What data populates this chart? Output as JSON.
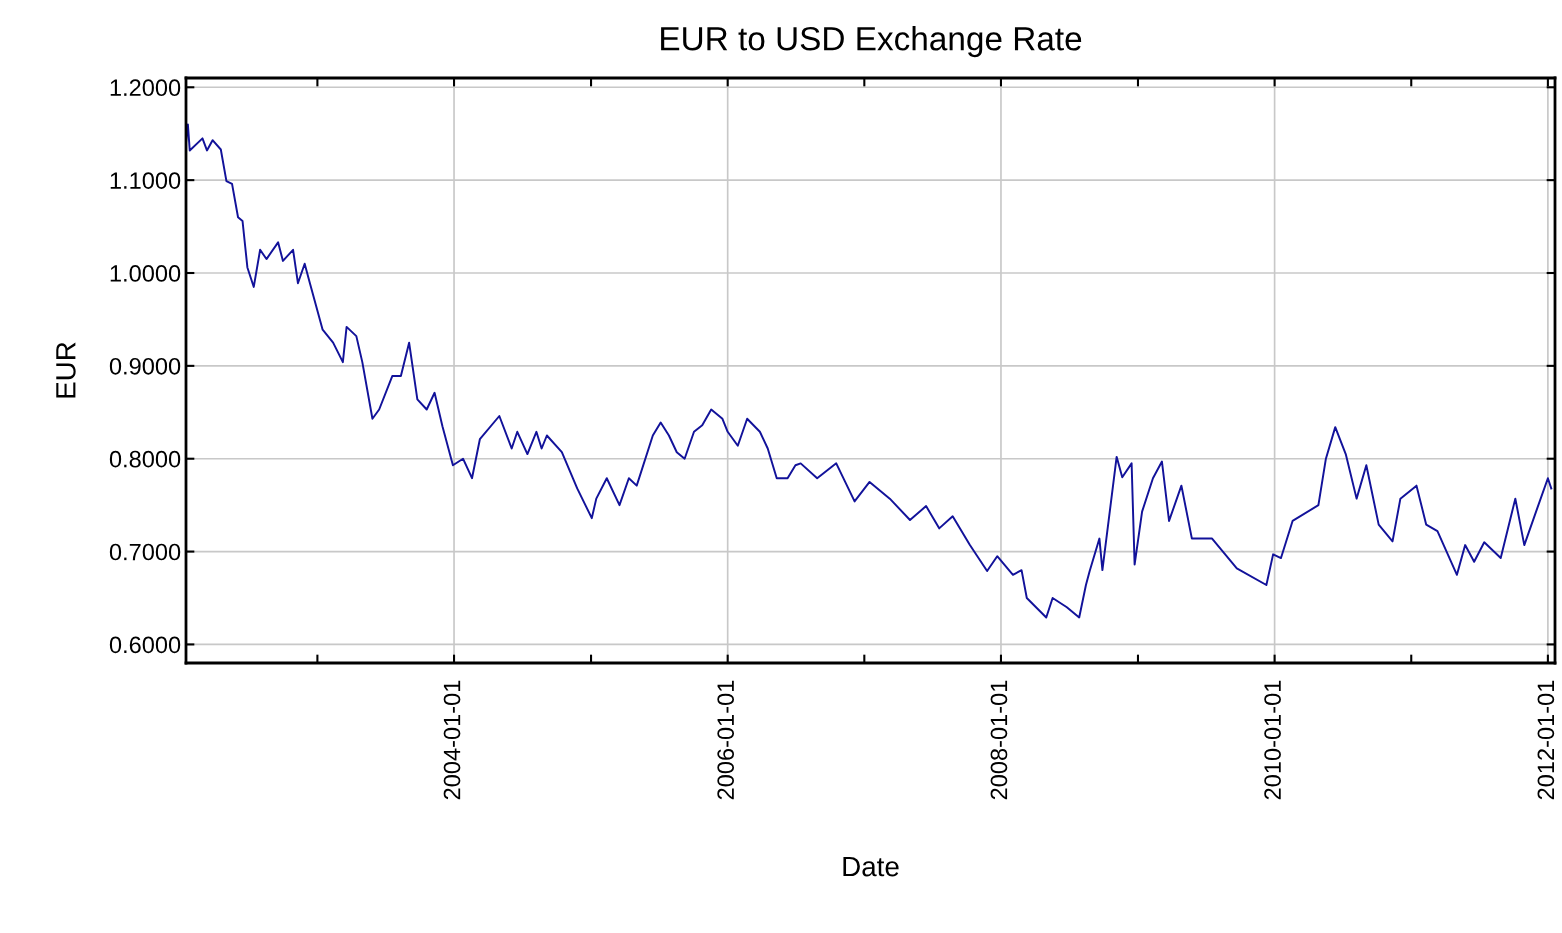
{
  "chart_data": {
    "type": "line",
    "title": "EUR to USD Exchange Rate",
    "xlabel": "Date",
    "ylabel": "EUR",
    "x": [
      "2002-01-15",
      "2002-01-20",
      "2002-01-25",
      "2002-02-28",
      "2002-03-12",
      "2002-03-27",
      "2002-04-18",
      "2002-05-03",
      "2002-05-18",
      "2002-06-03",
      "2002-06-15",
      "2002-06-28",
      "2002-07-15",
      "2002-08-01",
      "2002-08-18",
      "2002-09-18",
      "2002-10-01",
      "2002-10-28",
      "2002-11-10",
      "2002-11-28",
      "2002-12-12",
      "2003-01-15",
      "2003-02-12",
      "2003-03-10",
      "2003-03-20",
      "2003-04-15",
      "2003-05-01",
      "2003-05-28",
      "2003-06-15",
      "2003-07-20",
      "2003-08-12",
      "2003-09-03",
      "2003-09-25",
      "2003-10-20",
      "2003-11-10",
      "2003-12-01",
      "2003-12-29",
      "2004-01-25",
      "2004-02-18",
      "2004-03-10",
      "2004-05-01",
      "2004-06-03",
      "2004-06-18",
      "2004-07-15",
      "2004-08-08",
      "2004-08-22",
      "2004-09-05",
      "2004-10-15",
      "2004-11-25",
      "2005-01-03",
      "2005-01-15",
      "2005-02-12",
      "2005-03-18",
      "2005-04-12",
      "2005-05-03",
      "2005-06-15",
      "2005-07-06",
      "2005-07-28",
      "2005-08-18",
      "2005-09-08",
      "2005-10-03",
      "2005-10-25",
      "2005-11-18",
      "2005-12-18",
      "2006-01-01",
      "2006-01-28",
      "2006-02-22",
      "2006-03-28",
      "2006-04-18",
      "2006-05-12",
      "2006-06-10",
      "2006-07-01",
      "2006-07-15",
      "2006-08-28",
      "2006-10-18",
      "2006-12-06",
      "2007-01-15",
      "2007-03-10",
      "2007-05-03",
      "2007-06-15",
      "2007-07-20",
      "2007-08-25",
      "2007-10-10",
      "2007-11-25",
      "2007-12-22",
      "2008-02-02",
      "2008-02-25",
      "2008-03-10",
      "2008-05-01",
      "2008-05-18",
      "2008-06-25",
      "2008-07-28",
      "2008-08-15",
      "2008-08-25",
      "2008-09-20",
      "2008-09-28",
      "2008-11-05",
      "2008-11-20",
      "2008-12-15",
      "2008-12-23",
      "2009-01-12",
      "2009-02-10",
      "2009-03-06",
      "2009-03-25",
      "2009-04-27",
      "2009-05-25",
      "2009-07-18",
      "2009-09-22",
      "2009-12-10",
      "2009-12-28",
      "2010-01-18",
      "2010-02-18",
      "2010-04-28",
      "2010-05-18",
      "2010-06-12",
      "2010-07-10",
      "2010-08-08",
      "2010-09-03",
      "2010-10-06",
      "2010-11-12",
      "2010-12-03",
      "2011-01-15",
      "2011-02-10",
      "2011-03-12",
      "2011-05-03",
      "2011-05-25",
      "2011-06-18",
      "2011-07-15",
      "2011-08-28",
      "2011-10-06",
      "2011-10-30",
      "2011-12-03",
      "2012-01-01",
      "2012-01-10"
    ],
    "series": [
      {
        "color": "#12129a",
        "values": [
          1.14,
          1.16,
          1.132,
          1.145,
          1.132,
          1.143,
          1.133,
          1.099,
          1.096,
          1.06,
          1.056,
          1.006,
          0.985,
          1.025,
          1.015,
          1.033,
          1.013,
          1.025,
          0.989,
          1.01,
          0.989,
          0.939,
          0.925,
          0.904,
          0.942,
          0.932,
          0.904,
          0.843,
          0.853,
          0.889,
          0.889,
          0.925,
          0.864,
          0.853,
          0.871,
          0.835,
          0.793,
          0.8,
          0.779,
          0.821,
          0.846,
          0.811,
          0.829,
          0.805,
          0.829,
          0.811,
          0.825,
          0.807,
          0.768,
          0.736,
          0.757,
          0.779,
          0.75,
          0.779,
          0.771,
          0.825,
          0.839,
          0.825,
          0.807,
          0.8,
          0.829,
          0.836,
          0.853,
          0.843,
          0.829,
          0.814,
          0.843,
          0.829,
          0.811,
          0.779,
          0.779,
          0.793,
          0.795,
          0.779,
          0.795,
          0.754,
          0.775,
          0.757,
          0.734,
          0.749,
          0.725,
          0.738,
          0.707,
          0.679,
          0.695,
          0.675,
          0.68,
          0.65,
          0.629,
          0.65,
          0.64,
          0.629,
          0.664,
          0.679,
          0.714,
          0.68,
          0.802,
          0.78,
          0.795,
          0.686,
          0.743,
          0.779,
          0.797,
          0.733,
          0.771,
          0.714,
          0.714,
          0.682,
          0.664,
          0.697,
          0.693,
          0.733,
          0.75,
          0.8,
          0.834,
          0.805,
          0.757,
          0.793,
          0.729,
          0.711,
          0.757,
          0.771,
          0.729,
          0.722,
          0.675,
          0.707,
          0.689,
          0.71,
          0.693,
          0.757,
          0.707,
          0.746,
          0.779,
          0.768
        ]
      }
    ],
    "xlim": [
      "2002-01-15",
      "2012-01-20"
    ],
    "xticks": [
      {
        "value": "2003-01-01",
        "label": null
      },
      {
        "value": "2004-01-01",
        "label": "2004-01-01"
      },
      {
        "value": "2005-01-01",
        "label": null
      },
      {
        "value": "2006-01-01",
        "label": "2006-01-01"
      },
      {
        "value": "2007-01-01",
        "label": null
      },
      {
        "value": "2008-01-01",
        "label": "2008-01-01"
      },
      {
        "value": "2009-01-01",
        "label": null
      },
      {
        "value": "2010-01-01",
        "label": "2010-01-01"
      },
      {
        "value": "2011-01-01",
        "label": null
      },
      {
        "value": "2012-01-01",
        "label": "2012-01-01"
      }
    ],
    "ylim": [
      0.58,
      1.21
    ],
    "yticks": [
      {
        "value": 0.6,
        "label": "0.6000"
      },
      {
        "value": 0.7,
        "label": "0.7000"
      },
      {
        "value": 0.8,
        "label": "0.8000"
      },
      {
        "value": 0.9,
        "label": "0.9000"
      },
      {
        "value": 1.0,
        "label": "1.0000"
      },
      {
        "value": 1.1,
        "label": "1.1000"
      },
      {
        "value": 1.2,
        "label": "1.2000"
      }
    ],
    "grid": true,
    "marker": "none",
    "line_style": "solid"
  }
}
